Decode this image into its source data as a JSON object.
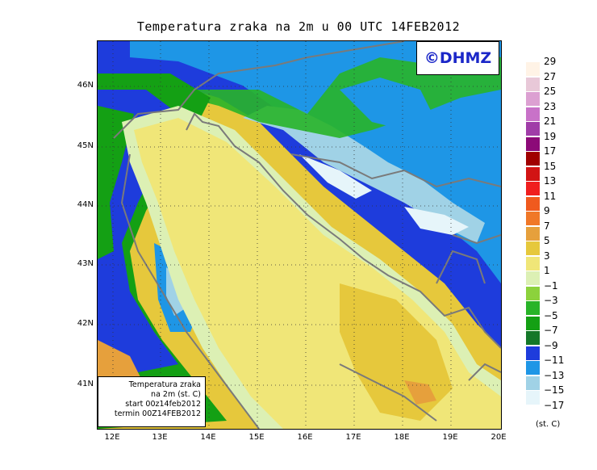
{
  "title": "Temperatura zraka na 2m u 00 UTC 14FEB2012",
  "logo": "©DHMZ",
  "info": {
    "line1": "Temperatura zraka",
    "line2": "na 2m (st. C)",
    "line3": "start 00z14feb2012",
    "line4": "termin 00Z14FEB2012"
  },
  "lat_labels": [
    "46N",
    "45N",
    "44N",
    "43N",
    "42N",
    "41N"
  ],
  "lon_labels": [
    "12E",
    "13E",
    "14E",
    "15E",
    "16E",
    "17E",
    "18E",
    "19E",
    "20E"
  ],
  "legend": {
    "units": "(st. C)",
    "entries": [
      {
        "label": "29",
        "color": "#fff3e6"
      },
      {
        "label": "27",
        "color": "#e8c8d8"
      },
      {
        "label": "25",
        "color": "#dca0d2"
      },
      {
        "label": "23",
        "color": "#c872c8"
      },
      {
        "label": "21",
        "color": "#a03ca8"
      },
      {
        "label": "19",
        "color": "#8c0a78"
      },
      {
        "label": "17",
        "color": "#a00000"
      },
      {
        "label": "15",
        "color": "#d21414"
      },
      {
        "label": "13",
        "color": "#f01e1e"
      },
      {
        "label": "11",
        "color": "#f05a1e"
      },
      {
        "label": "9",
        "color": "#f07828"
      },
      {
        "label": "7",
        "color": "#e6a03c"
      },
      {
        "label": "5",
        "color": "#e6c83c"
      },
      {
        "label": "3",
        "color": "#f0e678"
      },
      {
        "label": "1",
        "color": "#dcf0b4"
      },
      {
        "label": "−1",
        "color": "#8cd23c"
      },
      {
        "label": "−3",
        "color": "#28b428"
      },
      {
        "label": "−5",
        "color": "#14a014"
      },
      {
        "label": "−7",
        "color": "#147828"
      },
      {
        "label": "−9",
        "color": "#1e3cdc"
      },
      {
        "label": "−11",
        "color": "#1e96e6"
      },
      {
        "label": "−13",
        "color": "#a0d2e6"
      },
      {
        "label": "−15",
        "color": "#e6f5fa"
      },
      {
        "label": "−17",
        "color": "#ffffff"
      }
    ]
  }
}
